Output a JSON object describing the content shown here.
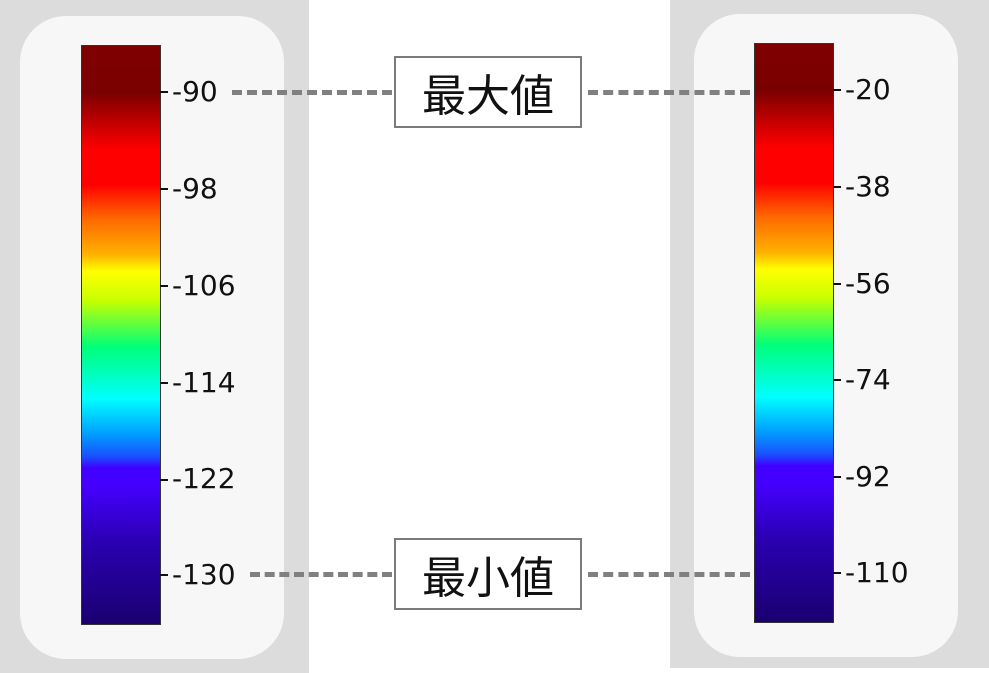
{
  "left_colorbar": {
    "ticks": [
      "-90",
      "-98",
      "-106",
      "-114",
      "-122",
      "-130"
    ]
  },
  "right_colorbar": {
    "ticks": [
      "-20",
      "-38",
      "-56",
      "-74",
      "-92",
      "-110"
    ]
  },
  "callouts": {
    "max_label": "最大値",
    "min_label": "最小値"
  },
  "colors": {
    "background_panel": "#f7f7f7",
    "outer_background": "#dcdcdc",
    "dash_line": "#808080",
    "colormap": "jet"
  }
}
